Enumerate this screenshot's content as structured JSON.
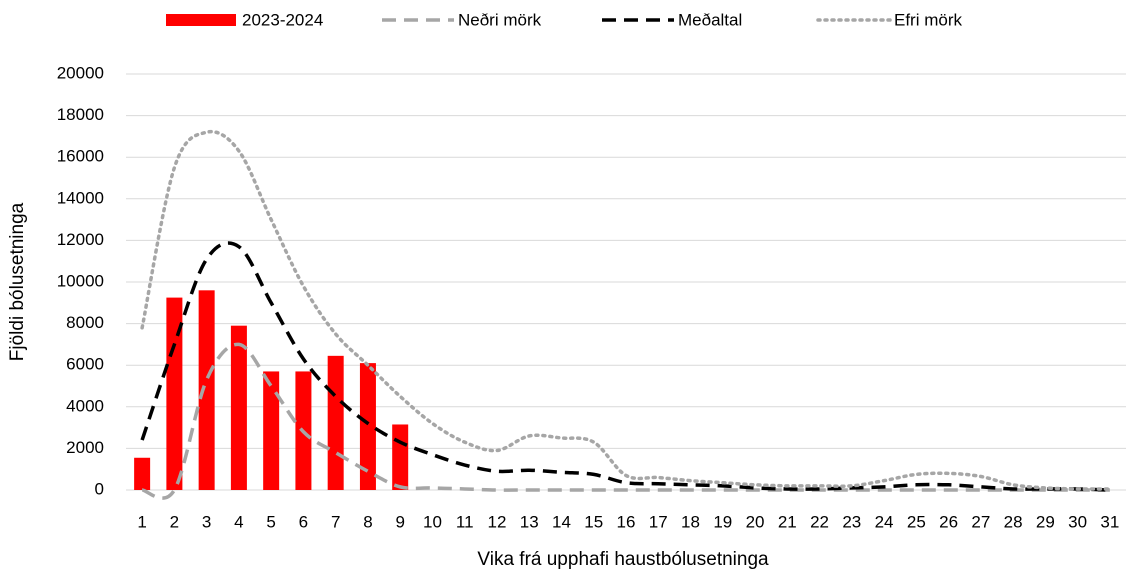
{
  "chart_data": {
    "type": "bar",
    "x_label": "Vika frá upphafi haustbólusetninga",
    "y_label": "Fjöldi bólusetninga",
    "categories": [
      "1",
      "2",
      "3",
      "4",
      "5",
      "6",
      "7",
      "8",
      "9",
      "10",
      "11",
      "12",
      "13",
      "14",
      "15",
      "16",
      "17",
      "18",
      "19",
      "20",
      "21",
      "22",
      "23",
      "24",
      "25",
      "26",
      "27",
      "28",
      "29",
      "30",
      "31"
    ],
    "ylim": [
      0,
      20000
    ],
    "yticks": [
      0,
      2000,
      4000,
      6000,
      8000,
      10000,
      12000,
      14000,
      16000,
      18000,
      20000
    ],
    "grid": true,
    "legend": "top",
    "series": [
      {
        "name": "2023-2024",
        "type": "bar",
        "color": "#ff0000",
        "values": [
          1550,
          9250,
          9600,
          7900,
          5700,
          5700,
          6450,
          6100,
          3150,
          null,
          null,
          null,
          null,
          null,
          null,
          null,
          null,
          null,
          null,
          null,
          null,
          null,
          null,
          null,
          null,
          null,
          null,
          null,
          null,
          null,
          null
        ]
      },
      {
        "name": "Neðri mörk",
        "type": "line",
        "dash": "dashed",
        "color": "#a6a6a6",
        "values": [
          0,
          0,
          5300,
          7000,
          5000,
          2800,
          1800,
          900,
          150,
          100,
          50,
          0,
          0,
          0,
          0,
          0,
          0,
          0,
          0,
          0,
          0,
          0,
          0,
          0,
          0,
          0,
          0,
          0,
          0,
          0,
          0
        ]
      },
      {
        "name": "Meðaltal",
        "type": "line",
        "dash": "dashed",
        "color": "#000000",
        "values": [
          2400,
          7000,
          11100,
          11700,
          9000,
          6300,
          4500,
          3200,
          2300,
          1700,
          1200,
          900,
          950,
          850,
          750,
          350,
          300,
          250,
          200,
          100,
          50,
          50,
          100,
          150,
          250,
          250,
          150,
          50,
          50,
          50,
          0
        ]
      },
      {
        "name": "Efri mörk",
        "type": "line",
        "dash": "dotted",
        "color": "#a6a6a6",
        "values": [
          7800,
          15500,
          17200,
          16300,
          13000,
          9800,
          7500,
          6000,
          4500,
          3200,
          2300,
          1900,
          2600,
          2500,
          2300,
          700,
          600,
          450,
          350,
          250,
          200,
          200,
          200,
          450,
          750,
          800,
          650,
          250,
          100,
          50,
          50
        ]
      }
    ]
  }
}
